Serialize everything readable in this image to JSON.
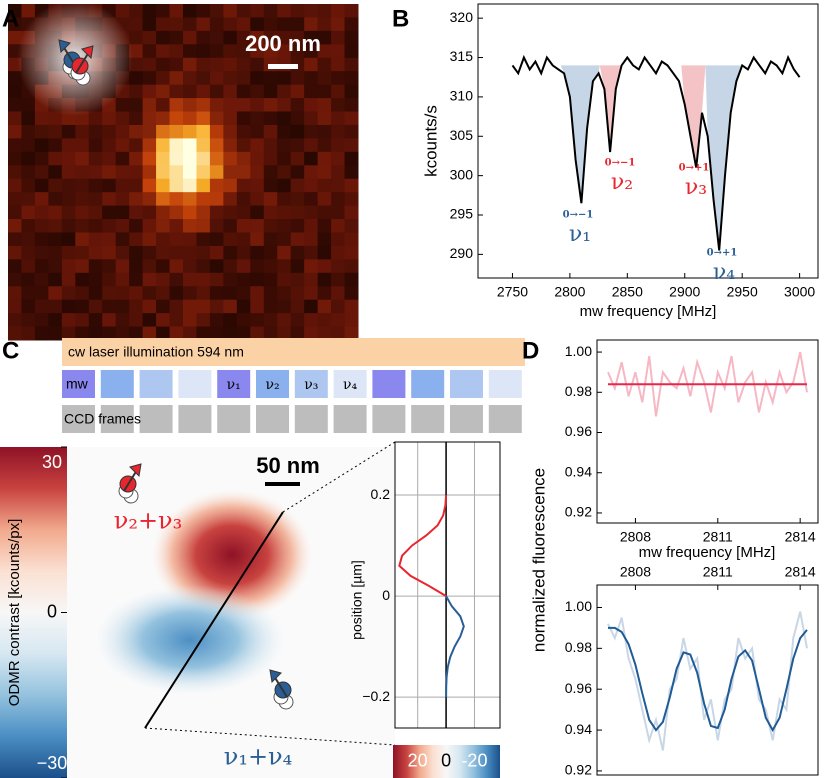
{
  "panels": [
    "A",
    "B",
    "C",
    "D"
  ],
  "image_a": {
    "scale": "200 nm"
  },
  "image_c": {
    "scale": "50 nm",
    "red_label": "ν₂+ν₃",
    "blue_label": "ν₁+ν₄"
  },
  "sequence": {
    "laser": "cw laser illumination 594 nm",
    "mw": "mw",
    "pulses": [
      "ν₁",
      "ν₂",
      "ν₃",
      "ν₄"
    ],
    "ccd": "CCD frames"
  },
  "chart_data": [
    {
      "type": "line",
      "xlabel": "mw frequency [MHz]",
      "ylabel": "kcounts/s",
      "color": "#000000",
      "x": [
        2750,
        2755,
        2760,
        2765,
        2770,
        2775,
        2780,
        2785,
        2790,
        2795,
        2800,
        2805,
        2810,
        2815,
        2820,
        2825,
        2830,
        2835,
        2840,
        2845,
        2850,
        2855,
        2860,
        2865,
        2870,
        2875,
        2880,
        2885,
        2890,
        2895,
        2900,
        2905,
        2910,
        2915,
        2920,
        2925,
        2930,
        2935,
        2940,
        2945,
        2950,
        2955,
        2960,
        2965,
        2970,
        2975,
        2980,
        2985,
        2990,
        2995,
        3000
      ],
      "values": [
        314,
        313,
        315,
        313.5,
        314.5,
        313,
        315,
        314,
        313.5,
        313,
        310,
        302,
        296.5,
        306,
        312,
        313,
        311,
        303,
        311,
        314,
        315,
        314,
        313.5,
        315,
        314,
        313,
        314.5,
        314,
        313,
        312,
        309,
        305,
        301,
        308,
        305,
        297,
        290.5,
        300,
        308,
        312,
        314,
        313.5,
        315,
        314,
        313,
        314.5,
        314,
        313,
        315,
        313.5,
        312.5
      ],
      "xlim": [
        2720,
        3016
      ],
      "xticks": [
        2750,
        2800,
        2850,
        2900,
        2950,
        3000
      ],
      "ylim": [
        287,
        321.8
      ],
      "yticks": [
        290,
        295,
        300,
        305,
        310,
        315,
        320
      ],
      "shade_level": 314,
      "shaded": [
        {
          "from": 2792,
          "to": 2826,
          "color": "#c6d6e6"
        },
        {
          "from": 2826,
          "to": 2845,
          "color": "#f4c3c6"
        },
        {
          "from": 2897,
          "to": 2918,
          "color": "#f4c3c6"
        },
        {
          "from": 2918,
          "to": 2950,
          "color": "#c6d6e6"
        }
      ],
      "annotations": [
        {
          "transition": "0→−1",
          "label": "ν₁",
          "color": "#2a5f96"
        },
        {
          "transition": "0→−1",
          "label": "ν₂",
          "color": "#e8262f"
        },
        {
          "transition": "0→+1",
          "label": "ν₃",
          "color": "#e8262f"
        },
        {
          "transition": "0→+1",
          "label": "ν₄",
          "color": "#2a5f96"
        }
      ]
    },
    {
      "type": "colorbar",
      "label": "ODMR contrast [kcounts/px]",
      "colormap": "RdBu",
      "clim": [
        -30,
        30
      ],
      "ticks": [
        30,
        0,
        {
          "value": -30,
          "label": "−30"
        }
      ]
    },
    {
      "type": "line",
      "orientation": "horizontal",
      "ylabel": "position [µm]",
      "colormap": "RdBu",
      "grid": true,
      "zero_line": true,
      "xlim": [
        36,
        -38
      ],
      "xticks": [
        20,
        0,
        -20
      ],
      "ylim": [
        -0.261,
        0.305
      ],
      "yticks": [
        0.2,
        0,
        {
          "value": -0.2,
          "label": "−0.2"
        }
      ],
      "series": [
        {
          "color": "#e8262f",
          "y": [
            0.2,
            0.18,
            0.16,
            0.14,
            0.12,
            0.1,
            0.08,
            0.06,
            0.04,
            0.02,
            0
          ],
          "values": [
            0,
            0.5,
            2,
            6,
            14,
            24,
            31,
            33,
            25,
            12,
            0
          ]
        },
        {
          "color": "#2a5f96",
          "y": [
            0,
            -0.02,
            -0.04,
            -0.06,
            -0.08,
            -0.1,
            -0.12,
            -0.14,
            -0.16,
            -0.18,
            -0.2
          ],
          "values": [
            0,
            -4,
            -10,
            -12.5,
            -10,
            -6,
            -3,
            -1.2,
            -0.4,
            -0.1,
            0
          ]
        }
      ]
    },
    {
      "type": "line",
      "xlabel": "mw frequency [MHz]",
      "ylabel": "normalized fluorescence",
      "xlim": [
        2806.6,
        2814.65
      ],
      "xticks": [
        2808,
        2811,
        2814
      ],
      "ylim": [
        0.915,
        1.006
      ],
      "yticks": [
        0.92,
        0.94,
        0.96,
        0.98,
        {
          "value": 1,
          "label": "1.00"
        }
      ],
      "series": [
        {
          "color": "#f5b8c4",
          "x": [
            2807,
            2807.25,
            2807.5,
            2807.75,
            2808,
            2808.25,
            2808.5,
            2808.75,
            2809,
            2809.25,
            2809.5,
            2809.75,
            2810,
            2810.25,
            2810.5,
            2810.75,
            2811,
            2811.25,
            2811.5,
            2811.75,
            2812,
            2812.25,
            2812.5,
            2812.75,
            2813,
            2813.25,
            2813.5,
            2813.75,
            2814,
            2814.25
          ],
          "values": [
            0.99,
            0.982,
            0.995,
            0.978,
            0.99,
            0.975,
            0.998,
            0.968,
            0.99,
            0.985,
            0.982,
            0.992,
            0.978,
            0.995,
            0.985,
            0.97,
            0.99,
            0.982,
            0.998,
            0.975,
            0.985,
            0.99,
            0.97,
            0.985,
            0.975,
            0.99,
            0.98,
            0.985,
            1.0,
            0.98
          ]
        },
        {
          "color": "#e8264a",
          "x": [
            2807,
            2814.25
          ],
          "values": [
            0.984,
            0.984
          ]
        }
      ]
    },
    {
      "type": "line",
      "xlim": [
        2806.6,
        2814.65
      ],
      "xticks": [
        2808,
        2811,
        2814
      ],
      "xtick_side": "top",
      "ylim": [
        0.918,
        1.011
      ],
      "yticks": [
        0.92,
        0.94,
        0.96,
        0.98,
        {
          "value": 1,
          "label": "1.00"
        }
      ],
      "series": [
        {
          "color": "#c8d6e6",
          "x": [
            2807,
            2807.25,
            2807.5,
            2807.75,
            2808,
            2808.25,
            2808.5,
            2808.75,
            2809,
            2809.25,
            2809.5,
            2809.75,
            2810,
            2810.25,
            2810.5,
            2810.75,
            2811,
            2811.25,
            2811.5,
            2811.75,
            2812,
            2812.25,
            2812.5,
            2812.75,
            2813,
            2813.25,
            2813.5,
            2813.75,
            2814,
            2814.25
          ],
          "values": [
            0.992,
            0.985,
            0.995,
            0.975,
            0.965,
            0.95,
            0.935,
            0.945,
            0.93,
            0.96,
            0.965,
            0.985,
            0.97,
            0.975,
            0.945,
            0.955,
            0.935,
            0.955,
            0.96,
            0.985,
            0.975,
            0.98,
            0.955,
            0.95,
            0.935,
            0.955,
            0.95,
            0.985,
            0.998,
            0.98
          ]
        },
        {
          "color": "#1f5b94",
          "x": [
            2807,
            2807.25,
            2807.5,
            2807.75,
            2808,
            2808.25,
            2808.5,
            2808.75,
            2809,
            2809.25,
            2809.5,
            2809.75,
            2810,
            2810.25,
            2810.5,
            2810.75,
            2811,
            2811.25,
            2811.5,
            2811.75,
            2812,
            2812.25,
            2812.5,
            2812.75,
            2813,
            2813.25,
            2813.5,
            2813.75,
            2814,
            2814.25
          ],
          "values": [
            0.99,
            0.99,
            0.988,
            0.982,
            0.972,
            0.958,
            0.945,
            0.94,
            0.944,
            0.956,
            0.97,
            0.978,
            0.977,
            0.968,
            0.953,
            0.942,
            0.941,
            0.95,
            0.965,
            0.976,
            0.979,
            0.974,
            0.96,
            0.946,
            0.94,
            0.946,
            0.96,
            0.975,
            0.985,
            0.989
          ]
        }
      ]
    }
  ]
}
